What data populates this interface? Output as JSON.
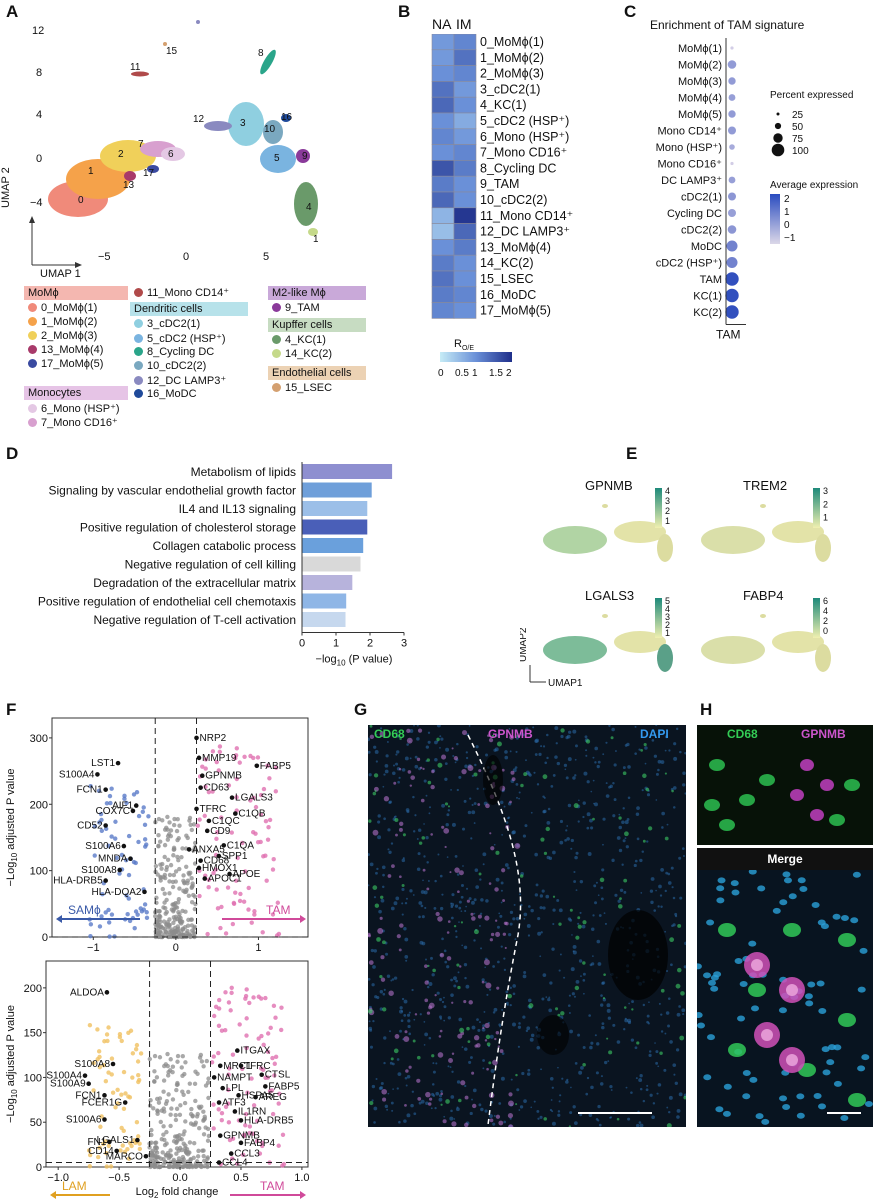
{
  "panels": {
    "A": {
      "label": "A",
      "axis_x": "UMAP 1",
      "axis_y": "UMAP 2",
      "yticks": [
        "12",
        "8",
        "4",
        "0",
        "−4"
      ],
      "xticks": [
        "−5",
        "0",
        "5"
      ],
      "cluster_labels": [
        "0",
        "1",
        "2",
        "3",
        "4",
        "5",
        "6",
        "7",
        "8",
        "9",
        "10",
        "11",
        "12",
        "13",
        "14",
        "15",
        "16",
        "17"
      ],
      "legend": {
        "groups": [
          {
            "name": "MoMϕ",
            "color": "#f4b7b0",
            "items": [
              {
                "label": "0_MoMϕ(1)",
                "color": "#f08a7a"
              },
              {
                "label": "1_MoMϕ(2)",
                "color": "#f5a24a"
              },
              {
                "label": "2_MoMϕ(3)",
                "color": "#f0d05a"
              },
              {
                "label": "13_MoMϕ(4)",
                "color": "#a83a6a"
              },
              {
                "label": "17_MoMϕ(5)",
                "color": "#3a4aa0"
              }
            ]
          },
          {
            "name": "Monocytes",
            "color": "#e6c4e6",
            "items": [
              {
                "label": "6_Mono (HSP⁺)",
                "color": "#e4c8e4"
              },
              {
                "label": "7_Mono CD16⁺",
                "color": "#d8a0cf"
              }
            ]
          },
          {
            "name": "",
            "color": "",
            "items": [
              {
                "label": "11_Mono CD14⁺",
                "color": "#b04a4a"
              }
            ]
          },
          {
            "name": "Dendritic cells",
            "color": "#b7e2ea",
            "items": [
              {
                "label": "3_cDC2(1)",
                "color": "#8fcfe0"
              },
              {
                "label": "5_cDC2 (HSP⁺)",
                "color": "#7ab4e0"
              },
              {
                "label": "8_Cycling DC",
                "color": "#2aa58a"
              },
              {
                "label": "10_cDC2(2)",
                "color": "#7aa8c0"
              },
              {
                "label": "12_DC LAMP3⁺",
                "color": "#8a8ac0"
              },
              {
                "label": "16_MoDC",
                "color": "#1f4a9a"
              }
            ]
          },
          {
            "name": "M2-like Mϕ",
            "color": "#c9a9d9",
            "items": [
              {
                "label": "9_TAM",
                "color": "#8a3a9a"
              }
            ]
          },
          {
            "name": "Kupffer cells",
            "color": "#c7dcc2",
            "items": [
              {
                "label": "4_KC(1)",
                "color": "#6a9a6a"
              },
              {
                "label": "14_KC(2)",
                "color": "#c5d98a"
              }
            ]
          },
          {
            "name": "Endothelial cells",
            "color": "#ecd2b4",
            "items": [
              {
                "label": "15_LSEC",
                "color": "#d4a070"
              }
            ]
          }
        ]
      }
    },
    "B": {
      "label": "B",
      "columns": [
        "NA",
        "IM"
      ],
      "colorbar_title": "R",
      "colorbar_sub": "O/E",
      "colorbar_ticks": [
        "0",
        "0.5",
        "1",
        "1.5",
        "2"
      ]
    },
    "C": {
      "label": "C",
      "title": "Enrichment of TAM signature",
      "xlabel": "TAM",
      "size_legend_title": "Percent expressed",
      "size_legend": [
        "25",
        "50",
        "75",
        "100"
      ],
      "color_legend_title": "Average expression",
      "color_legend_ticks": [
        "2",
        "1",
        "0",
        "−1"
      ]
    },
    "D": {
      "label": "D",
      "xlabel": "−log",
      "xlabel_sub": "10",
      "xlabel_end": " (P value)",
      "xticks": [
        "0",
        "1",
        "2",
        "3"
      ]
    },
    "E": {
      "label": "E",
      "genes": [
        {
          "name": "GPNMB",
          "ticks": [
            "4",
            "3",
            "2",
            "1"
          ]
        },
        {
          "name": "TREM2",
          "ticks": [
            "3",
            "2",
            "1"
          ]
        },
        {
          "name": "LGALS3",
          "ticks": [
            "5",
            "4",
            "3",
            "2",
            "1"
          ]
        },
        {
          "name": "FABP4",
          "ticks": [
            "6",
            "4",
            "2",
            "0"
          ]
        }
      ],
      "axis_x": "UMAP1",
      "axis_y": "UMAP2"
    },
    "F": {
      "label": "F",
      "top": {
        "ylabel": "−Log",
        "ylabel_sub": "10",
        "ylabel_end": " adjusted P value",
        "yticks": [
          "300",
          "200",
          "100",
          "0"
        ],
        "xticks": [
          "−1",
          "0",
          "1"
        ],
        "left_arrow": "SAMϕ",
        "right_arrow": "TAM"
      },
      "bottom": {
        "ylabel": "−Log",
        "ylabel_sub": "10",
        "ylabel_end": " adjusted P value",
        "yticks": [
          "200",
          "150",
          "100",
          "50",
          "0"
        ],
        "xticks": [
          "−1.0",
          "−0.5",
          "0.0",
          "0.5",
          "1.0"
        ],
        "xlabel": "Log",
        "xlabel_sub": "2",
        "xlabel_end": " fold change",
        "left_arrow": "LAM",
        "right_arrow": "TAM"
      }
    },
    "G": {
      "label": "G",
      "ch1": "CD68",
      "ch2": "GPNMB",
      "ch3": "DAPI"
    },
    "H": {
      "label": "H",
      "ch1": "CD68",
      "ch2": "GPNMB",
      "merge": "Merge"
    }
  },
  "chart_data": [
    {
      "type": "heatmap",
      "panel": "B",
      "columns": [
        "NA",
        "IM"
      ],
      "rows": [
        "0_MoMϕ(1)",
        "1_MoMϕ(2)",
        "2_MoMϕ(3)",
        "3_cDC2(1)",
        "4_KC(1)",
        "5_cDC2 (HSP⁺)",
        "6_Mono (HSP⁺)",
        "7_Mono CD16⁺",
        "8_Cycling DC",
        "9_TAM",
        "10_cDC2(2)",
        "11_Mono CD14⁺",
        "12_DC LAMP3⁺",
        "13_MoMϕ(4)",
        "14_KC(2)",
        "15_LSEC",
        "16_MoDC",
        "17_MoMϕ(5)"
      ],
      "values": [
        [
          0.9,
          1.1
        ],
        [
          0.9,
          1.3
        ],
        [
          1.0,
          1.1
        ],
        [
          1.3,
          0.9
        ],
        [
          1.4,
          1.0
        ],
        [
          1.0,
          0.7
        ],
        [
          1.1,
          0.9
        ],
        [
          1.0,
          1.1
        ],
        [
          1.6,
          1.2
        ],
        [
          1.2,
          1.0
        ],
        [
          1.4,
          1.0
        ],
        [
          0.6,
          1.9
        ],
        [
          0.5,
          1.4
        ],
        [
          1.0,
          1.2
        ],
        [
          1.2,
          1.0
        ],
        [
          1.3,
          1.0
        ],
        [
          1.2,
          1.1
        ],
        [
          1.1,
          1.0
        ]
      ],
      "range": [
        0,
        2
      ]
    },
    {
      "type": "scatter",
      "panel": "C",
      "rows": [
        "MoMϕ(1)",
        "MoMϕ(2)",
        "MoMϕ(3)",
        "MoMϕ(4)",
        "MoMϕ(5)",
        "Mono CD14⁺",
        "Mono (HSP⁺)",
        "Mono CD16⁺",
        "DC LAMP3⁺",
        "cDC2(1)",
        "Cycling DC",
        "cDC2(2)",
        "MoDC",
        "cDC2 (HSP⁺)",
        "TAM",
        "KC(1)",
        "KC(2)"
      ],
      "column": "TAM",
      "percent": [
        10,
        55,
        45,
        40,
        45,
        50,
        30,
        10,
        40,
        50,
        50,
        55,
        75,
        75,
        95,
        95,
        95
      ],
      "avg_expression": [
        -1.0,
        0.2,
        0.2,
        0.1,
        0.2,
        0.2,
        -0.2,
        -1.0,
        0.1,
        0.3,
        0.1,
        0.3,
        0.8,
        0.8,
        2.0,
        2.0,
        2.0
      ]
    },
    {
      "type": "bar",
      "panel": "D",
      "categories": [
        "Metabolism of lipids",
        "Signaling by vascular endothelial growth factor",
        "IL4 and IL13 signaling",
        "Positive regulation of cholesterol storage",
        "Collagen catabolic process",
        "Negative regulation of cell killing",
        "Degradation of the extracellular matrix",
        "Positive regulation of endothelial cell chemotaxis",
        "Negative regulation of T-cell activation"
      ],
      "values": [
        2.65,
        2.05,
        1.92,
        1.92,
        1.8,
        1.72,
        1.48,
        1.3,
        1.28
      ],
      "colors": [
        "#8e8fd0",
        "#6e9fda",
        "#9cbfe8",
        "#4a5fb8",
        "#6aa0dc",
        "#d9d9d9",
        "#b7b3dc",
        "#8fb6e6",
        "#c6d8ee"
      ],
      "xlim": [
        0,
        3
      ]
    },
    {
      "type": "scatter",
      "panel": "F-top",
      "xlim": [
        -1.5,
        1.6
      ],
      "ylim": [
        0,
        330
      ],
      "labeled_points": [
        {
          "label": "NRP2",
          "x": 0.25,
          "y": 300
        },
        {
          "label": "MMP19",
          "x": 0.28,
          "y": 270
        },
        {
          "label": "FABP5",
          "x": 0.98,
          "y": 258
        },
        {
          "label": "GPNMB",
          "x": 0.32,
          "y": 243
        },
        {
          "label": "CD63",
          "x": 0.3,
          "y": 225
        },
        {
          "label": "LGALS3",
          "x": 0.68,
          "y": 210
        },
        {
          "label": "TFRC",
          "x": 0.25,
          "y": 193
        },
        {
          "label": "C1QB",
          "x": 0.72,
          "y": 186
        },
        {
          "label": "C1QC",
          "x": 0.4,
          "y": 175
        },
        {
          "label": "CD9",
          "x": 0.38,
          "y": 160
        },
        {
          "label": "C1QA",
          "x": 0.58,
          "y": 138
        },
        {
          "label": "ANXA5",
          "x": 0.16,
          "y": 132
        },
        {
          "label": "SPP1",
          "x": 0.52,
          "y": 122
        },
        {
          "label": "CD68",
          "x": 0.3,
          "y": 115
        },
        {
          "label": "HMOX1",
          "x": 0.28,
          "y": 104
        },
        {
          "label": "APOC1",
          "x": 0.35,
          "y": 88
        },
        {
          "label": "APOE",
          "x": 0.65,
          "y": 95
        },
        {
          "label": "LST1",
          "x": -0.7,
          "y": 262
        },
        {
          "label": "S100A4",
          "x": -0.95,
          "y": 245
        },
        {
          "label": "FCN1",
          "x": -0.85,
          "y": 222
        },
        {
          "label": "AIF1",
          "x": -0.48,
          "y": 198
        },
        {
          "label": "COX7C",
          "x": -0.52,
          "y": 190
        },
        {
          "label": "CD52",
          "x": -0.85,
          "y": 168
        },
        {
          "label": "S100A6",
          "x": -0.63,
          "y": 137
        },
        {
          "label": "MNDA",
          "x": -0.55,
          "y": 118
        },
        {
          "label": "S100A8",
          "x": -0.68,
          "y": 101
        },
        {
          "label": "HLA-DRB5",
          "x": -0.85,
          "y": 85
        },
        {
          "label": "HLA-DQA2",
          "x": -0.38,
          "y": 68
        }
      ]
    },
    {
      "type": "scatter",
      "panel": "F-bottom",
      "xlim": [
        -1.1,
        1.05
      ],
      "ylim": [
        0,
        230
      ],
      "labeled_points": [
        {
          "label": "ALDOA",
          "x": -0.6,
          "y": 195
        },
        {
          "label": "S100A8",
          "x": -0.55,
          "y": 115
        },
        {
          "label": "S100A4",
          "x": -0.78,
          "y": 102
        },
        {
          "label": "S100A9",
          "x": -0.75,
          "y": 93
        },
        {
          "label": "FCN1",
          "x": -0.62,
          "y": 80
        },
        {
          "label": "FCER1G",
          "x": -0.45,
          "y": 72
        },
        {
          "label": "S100A6",
          "x": -0.62,
          "y": 53
        },
        {
          "label": "LGALS1",
          "x": -0.35,
          "y": 30
        },
        {
          "label": "FN1",
          "x": -0.58,
          "y": 28
        },
        {
          "label": "CD14",
          "x": -0.52,
          "y": 18
        },
        {
          "label": "MARCO",
          "x": -0.28,
          "y": 12
        },
        {
          "label": "ITGAX",
          "x": 0.47,
          "y": 130
        },
        {
          "label": "MRC1",
          "x": 0.33,
          "y": 113
        },
        {
          "label": "TFRC",
          "x": 0.5,
          "y": 113
        },
        {
          "label": "CTSL",
          "x": 0.67,
          "y": 103
        },
        {
          "label": "NAMPT",
          "x": 0.28,
          "y": 100
        },
        {
          "label": "FABP5",
          "x": 0.7,
          "y": 90
        },
        {
          "label": "LPL",
          "x": 0.35,
          "y": 88
        },
        {
          "label": "HSPA5",
          "x": 0.48,
          "y": 80
        },
        {
          "label": "AREG",
          "x": 0.62,
          "y": 78
        },
        {
          "label": "ATF3",
          "x": 0.32,
          "y": 72
        },
        {
          "label": "IL1RN",
          "x": 0.45,
          "y": 62
        },
        {
          "label": "HLA-DRB5",
          "x": 0.5,
          "y": 52
        },
        {
          "label": "GPNMB",
          "x": 0.33,
          "y": 35
        },
        {
          "label": "FABP4",
          "x": 0.5,
          "y": 27
        },
        {
          "label": "CCL3",
          "x": 0.42,
          "y": 15
        },
        {
          "label": "CCL4",
          "x": 0.32,
          "y": 5
        }
      ]
    }
  ]
}
